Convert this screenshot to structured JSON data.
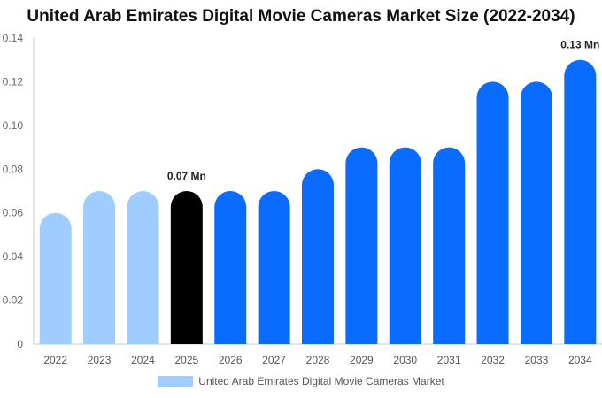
{
  "chart_data": {
    "type": "bar",
    "title": "United Arab Emirates Digital Movie Cameras Market Size (2022-2034)",
    "categories": [
      "2022",
      "2023",
      "2024",
      "2025",
      "2026",
      "2027",
      "2028",
      "2029",
      "2030",
      "2031",
      "2032",
      "2033",
      "2034"
    ],
    "series": [
      {
        "name": "United Arab Emirates Digital Movie Cameras Market",
        "values": [
          0.06,
          0.07,
          0.07,
          0.07,
          0.07,
          0.07,
          0.08,
          0.09,
          0.09,
          0.09,
          0.12,
          0.12,
          0.13
        ]
      }
    ],
    "ylim": [
      0,
      0.14
    ],
    "yticks": [
      "0",
      "0.02",
      "0.04",
      "0.06",
      "0.08",
      "0.10",
      "0.12",
      "0.14"
    ],
    "bar_colors": [
      "#9fcdff",
      "#9fcdff",
      "#9fcdff",
      "#000000",
      "#0a6cff",
      "#0a6cff",
      "#0a6cff",
      "#0a6cff",
      "#0a6cff",
      "#0a6cff",
      "#0a6cff",
      "#0a6cff",
      "#0a6cff"
    ],
    "annotations": [
      {
        "category": "2025",
        "text": "0.07 Mn"
      },
      {
        "category": "2034",
        "text": "0.13 Mn"
      }
    ],
    "legend_position": "bottom-center",
    "legend_color": "#9fcdff",
    "grid": false
  }
}
